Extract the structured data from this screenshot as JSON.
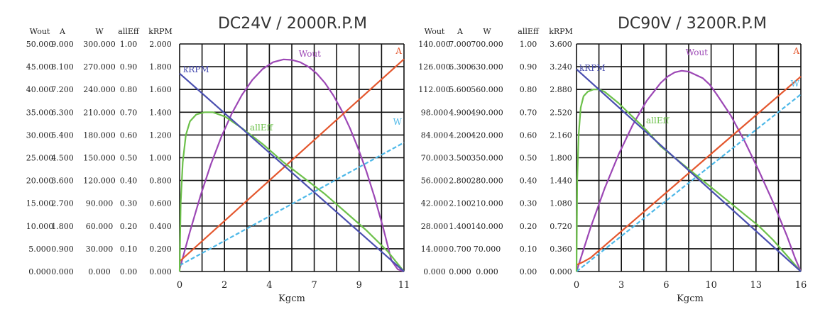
{
  "colors": {
    "Wout": "#9c47b5",
    "A": "#e4572e",
    "W": "#4db8e8",
    "allEff": "#6cc04a",
    "kRPM": "#4a4fb0",
    "grid": "#111111",
    "text": "#222222"
  },
  "chart_data": [
    {
      "type": "line",
      "title": "DC24V / 2000R.P.M",
      "xlabel": "Kgcm",
      "x_ticks": [
        "0",
        "2",
        "4",
        "7",
        "9",
        "11"
      ],
      "xlim": [
        0,
        10.8
      ],
      "grid": true,
      "legend": "inline labels on curves",
      "axis_columns": [
        {
          "header": "Wout",
          "ticks": [
            "50.000",
            "45.000",
            "40.000",
            "35.000",
            "30.000",
            "25.000",
            "20.000",
            "15.000",
            "10.000",
            "5.000",
            "0.000"
          ]
        },
        {
          "header": "A",
          "ticks": [
            "9.000",
            "8.100",
            "7.200",
            "6.300",
            "5.400",
            "4.500",
            "3.600",
            "2.700",
            "1.800",
            "0.900",
            "0.000"
          ]
        },
        {
          "header": "W",
          "ticks": [
            "300.000",
            "270.000",
            "240.000",
            "210.000",
            "180.000",
            "150.000",
            "120.000",
            "90.000",
            "60.000",
            "30.000",
            "0.000"
          ]
        },
        {
          "header": "allEff",
          "ticks": [
            "1.00",
            "0.90",
            "0.80",
            "0.70",
            "0.60",
            "0.50",
            "0.40",
            "0.30",
            "0.20",
            "0.10",
            "0.00"
          ]
        },
        {
          "header": "kRPM",
          "ticks": [
            "2.000",
            "1.800",
            "1.600",
            "1.400",
            "1.200",
            "1.000",
            "0.800",
            "0.600",
            "0.400",
            "0.200",
            "0.000"
          ]
        }
      ],
      "series": [
        {
          "name": "Wout",
          "axis": "Wout",
          "x": [
            0,
            0.5,
            1.0,
            1.5,
            2.0,
            2.5,
            3.0,
            3.5,
            4.0,
            4.5,
            5.0,
            5.4,
            5.8,
            6.2,
            6.6,
            7.0,
            7.4,
            7.8,
            8.2,
            8.6,
            9.0,
            9.4,
            9.8,
            10.2,
            10.5,
            10.8
          ],
          "y": [
            0.5,
            8.8,
            16.6,
            23.5,
            29.5,
            34.6,
            38.8,
            42.1,
            44.5,
            46.0,
            46.6,
            46.5,
            46.0,
            45.0,
            43.5,
            41.4,
            38.7,
            35.4,
            31.5,
            27.0,
            21.9,
            16.1,
            9.6,
            2.4,
            0.5,
            0
          ]
        },
        {
          "name": "A",
          "axis": "A",
          "x": [
            0,
            10.8
          ],
          "y": [
            0.4,
            8.4
          ]
        },
        {
          "name": "W",
          "axis": "W",
          "x": [
            0,
            10.8
          ],
          "y": [
            8,
            170
          ]
        },
        {
          "name": "allEff",
          "axis": "allEff",
          "x": [
            0,
            0.05,
            0.15,
            0.3,
            0.5,
            0.8,
            1.2,
            1.6,
            2.2,
            3.0,
            4.0,
            5.0,
            6.0,
            7.0,
            8.0,
            9.0,
            10.0,
            10.8
          ],
          "y": [
            0,
            0.3,
            0.48,
            0.6,
            0.66,
            0.69,
            0.7,
            0.7,
            0.68,
            0.63,
            0.56,
            0.48,
            0.41,
            0.34,
            0.26,
            0.18,
            0.09,
            0
          ]
        },
        {
          "name": "kRPM",
          "axis": "kRPM",
          "x": [
            0,
            10.8
          ],
          "y": [
            1.74,
            0
          ]
        }
      ]
    },
    {
      "type": "line",
      "title": "DC90V / 3200R.P.M",
      "xlabel": "Kgcm",
      "x_ticks": [
        "0",
        "3",
        "6",
        "10",
        "13",
        "16"
      ],
      "xlim": [
        0,
        16
      ],
      "grid": true,
      "legend": "inline labels on curves",
      "axis_columns": [
        {
          "header": "Wout",
          "ticks": [
            "140.000",
            "126.000",
            "112.000",
            "98.000",
            "84.000",
            "70.000",
            "56.000",
            "42.000",
            "28.000",
            "14.000",
            "0.000"
          ]
        },
        {
          "header": "A",
          "ticks": [
            "7.000",
            "6.300",
            "5.600",
            "4.900",
            "4.200",
            "3.500",
            "2.800",
            "2.100",
            "1.400",
            "0.700",
            "0.000"
          ]
        },
        {
          "header": "W",
          "ticks": [
            "700.000",
            "630.000",
            "560.000",
            "490.000",
            "420.000",
            "350.000",
            "280.000",
            "210.000",
            "140.000",
            "70.000",
            "0.000"
          ]
        },
        {
          "header": "allEff",
          "ticks": [
            "1.00",
            "0.90",
            "0.80",
            "0.70",
            "0.60",
            "0.50",
            "0.40",
            "0.30",
            "0.20",
            "0.10",
            "0.00"
          ]
        },
        {
          "header": "kRPM",
          "ticks": [
            "3.600",
            "3.240",
            "2.880",
            "2.520",
            "2.160",
            "1.800",
            "1.440",
            "1.080",
            "0.720",
            "0.360",
            "0.000"
          ]
        }
      ],
      "series": [
        {
          "name": "Wout",
          "axis": "Wout",
          "x": [
            0,
            1,
            2,
            3,
            4,
            5,
            6,
            6.5,
            7,
            7.5,
            8,
            8.5,
            9,
            9.5,
            10,
            11,
            12,
            13,
            14,
            15,
            15.6,
            16
          ],
          "y": [
            0,
            27,
            51,
            72,
            90,
            105,
            116,
            120,
            122.5,
            123.5,
            123,
            121,
            119,
            115,
            109,
            96,
            80,
            62,
            43,
            22,
            8,
            0
          ]
        },
        {
          "name": "A",
          "axis": "A",
          "x": [
            0,
            0.5,
            1,
            16
          ],
          "y": [
            0.2,
            0.3,
            0.42,
            6.0
          ]
        },
        {
          "name": "W",
          "axis": "W",
          "x": [
            0,
            16
          ],
          "y": [
            0,
            545
          ]
        },
        {
          "name": "allEff",
          "axis": "allEff",
          "x": [
            0,
            0.05,
            0.15,
            0.3,
            0.5,
            0.8,
            1.2,
            1.6,
            2,
            3,
            4,
            5,
            6,
            7,
            8,
            9,
            10,
            11,
            12,
            13,
            14,
            15,
            16
          ],
          "y": [
            0,
            0.4,
            0.6,
            0.72,
            0.77,
            0.79,
            0.8,
            0.8,
            0.79,
            0.74,
            0.68,
            0.62,
            0.55,
            0.5,
            0.45,
            0.4,
            0.35,
            0.3,
            0.25,
            0.2,
            0.14,
            0.07,
            0
          ]
        },
        {
          "name": "kRPM",
          "axis": "kRPM",
          "x": [
            0,
            16
          ],
          "y": [
            3.2,
            0
          ]
        }
      ]
    }
  ]
}
